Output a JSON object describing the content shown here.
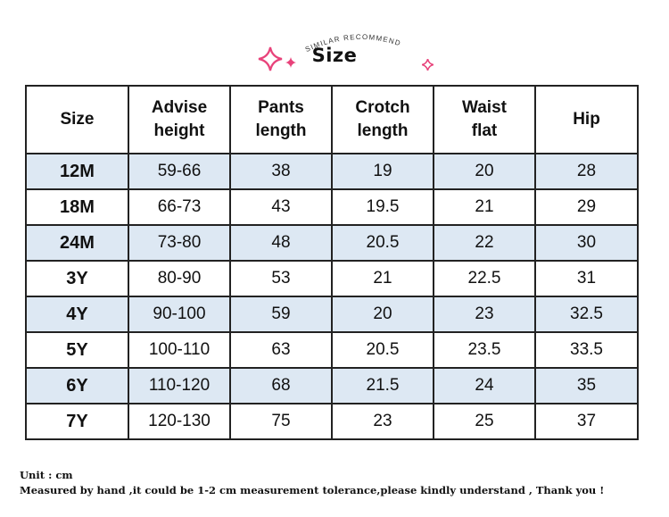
{
  "header": {
    "subtitle": "SIMILAR RECOMMEND",
    "title": "Size",
    "accent_color": "#e8427a"
  },
  "table": {
    "columns": [
      "Size",
      "Advise height",
      "Pants length",
      "Crotch length",
      "Waist flat",
      "Hip"
    ],
    "column_lines": [
      [
        "Size"
      ],
      [
        "Advise",
        "height"
      ],
      [
        "Pants",
        "length"
      ],
      [
        "Crotch",
        "length"
      ],
      [
        "Waist",
        "flat"
      ],
      [
        "Hip"
      ]
    ],
    "rows": [
      [
        "12M",
        "59-66",
        "38",
        "19",
        "20",
        "28"
      ],
      [
        "18M",
        "66-73",
        "43",
        "19.5",
        "21",
        "29"
      ],
      [
        "24M",
        "73-80",
        "48",
        "20.5",
        "22",
        "30"
      ],
      [
        "3Y",
        "80-90",
        "53",
        "21",
        "22.5",
        "31"
      ],
      [
        "4Y",
        "90-100",
        "59",
        "20",
        "23",
        "32.5"
      ],
      [
        "5Y",
        "100-110",
        "63",
        "20.5",
        "23.5",
        "33.5"
      ],
      [
        "6Y",
        "110-120",
        "68",
        "21.5",
        "24",
        "35"
      ],
      [
        "7Y",
        "120-130",
        "75",
        "23",
        "25",
        "37"
      ]
    ],
    "shaded_row_color": "#dde8f3"
  },
  "footer": {
    "unit": "Unit : cm",
    "note": "Measured by hand ,it could be 1-2 cm measurement tolerance,please kindly understand , Thank you !"
  }
}
